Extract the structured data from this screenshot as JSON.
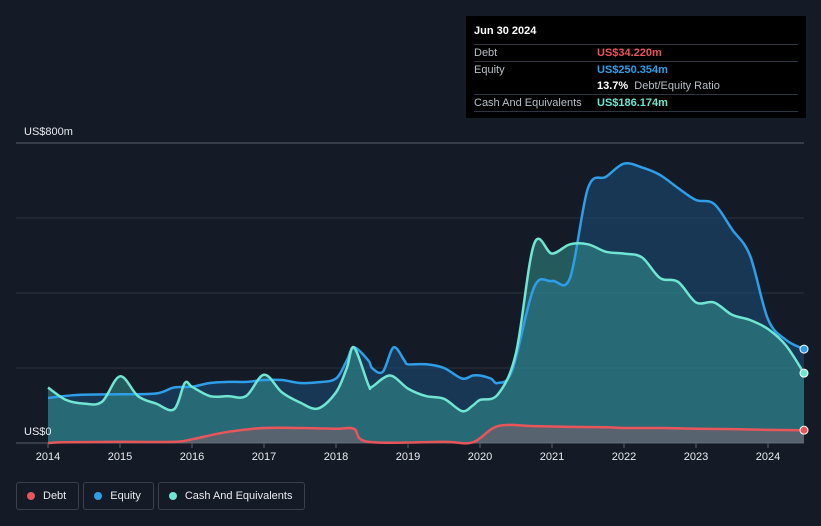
{
  "tooltip": {
    "date": "Jun 30 2024",
    "rows": [
      {
        "label": "Debt",
        "value": "US$34.220m",
        "color": "#e8555a"
      },
      {
        "label": "Equity",
        "value": "US$250.354m",
        "color": "#2e9ee8"
      }
    ],
    "ratio_value": "13.7%",
    "ratio_label": "Debt/Equity Ratio",
    "cash": {
      "label": "Cash And Equivalents",
      "value": "US$186.174m",
      "color": "#70e6d2"
    }
  },
  "legend": [
    {
      "label": "Debt",
      "color": "#e8555a"
    },
    {
      "label": "Equity",
      "color": "#2e9ee8"
    },
    {
      "label": "Cash And Equivalents",
      "color": "#70e6d2"
    }
  ],
  "chart_data": {
    "type": "area",
    "title": "",
    "y_top_label": "US$800m",
    "y_bottom_label": "US$0",
    "ylim": [
      0,
      800
    ],
    "xlim": [
      2014.0,
      2024.5
    ],
    "x_ticks": [
      "2014",
      "2015",
      "2016",
      "2017",
      "2018",
      "2019",
      "2020",
      "2021",
      "2022",
      "2023",
      "2024"
    ],
    "grid": true,
    "legend_position": "bottom-left",
    "series": [
      {
        "name": "Debt",
        "color": "#e8555a",
        "points": [
          [
            2014.0,
            0
          ],
          [
            2014.25,
            2
          ],
          [
            2015.0,
            3
          ],
          [
            2015.75,
            3
          ],
          [
            2016.0,
            10
          ],
          [
            2016.5,
            30
          ],
          [
            2017.0,
            40
          ],
          [
            2017.5,
            40
          ],
          [
            2018.0,
            38
          ],
          [
            2018.25,
            38
          ],
          [
            2018.45,
            3
          ],
          [
            2019.5,
            3
          ],
          [
            2019.9,
            2
          ],
          [
            2020.25,
            45
          ],
          [
            2020.75,
            45
          ],
          [
            2021.25,
            43
          ],
          [
            2021.75,
            42
          ],
          [
            2022.0,
            40
          ],
          [
            2022.5,
            40
          ],
          [
            2023.0,
            38
          ],
          [
            2023.5,
            37
          ],
          [
            2024.0,
            35
          ],
          [
            2024.5,
            34.22
          ]
        ]
      },
      {
        "name": "Equity",
        "color": "#2e9ee8",
        "points": [
          [
            2014.0,
            120
          ],
          [
            2014.4,
            128
          ],
          [
            2015.0,
            130
          ],
          [
            2015.5,
            132
          ],
          [
            2015.75,
            148
          ],
          [
            2016.0,
            150
          ],
          [
            2016.25,
            160
          ],
          [
            2016.5,
            163
          ],
          [
            2016.75,
            163
          ],
          [
            2017.0,
            168
          ],
          [
            2017.25,
            168
          ],
          [
            2017.5,
            160
          ],
          [
            2017.75,
            162
          ],
          [
            2018.0,
            172
          ],
          [
            2018.15,
            220
          ],
          [
            2018.25,
            255
          ],
          [
            2018.45,
            220
          ],
          [
            2018.5,
            200
          ],
          [
            2018.65,
            190
          ],
          [
            2018.8,
            255
          ],
          [
            2018.95,
            220
          ],
          [
            2019.0,
            210
          ],
          [
            2019.25,
            210
          ],
          [
            2019.5,
            200
          ],
          [
            2019.75,
            172
          ],
          [
            2019.9,
            180
          ],
          [
            2020.0,
            180
          ],
          [
            2020.15,
            172
          ],
          [
            2020.25,
            160
          ],
          [
            2020.45,
            195
          ],
          [
            2020.75,
            415
          ],
          [
            2021.0,
            432
          ],
          [
            2021.25,
            440
          ],
          [
            2021.5,
            680
          ],
          [
            2021.75,
            710
          ],
          [
            2022.0,
            745
          ],
          [
            2022.25,
            735
          ],
          [
            2022.5,
            715
          ],
          [
            2022.75,
            680
          ],
          [
            2023.0,
            648
          ],
          [
            2023.25,
            638
          ],
          [
            2023.5,
            570
          ],
          [
            2023.75,
            500
          ],
          [
            2024.0,
            330
          ],
          [
            2024.25,
            275
          ],
          [
            2024.5,
            250.354
          ]
        ]
      },
      {
        "name": "Cash And Equivalents",
        "color": "#70e6d2",
        "points": [
          [
            2014.0,
            148
          ],
          [
            2014.25,
            115
          ],
          [
            2014.5,
            105
          ],
          [
            2014.75,
            110
          ],
          [
            2015.0,
            178
          ],
          [
            2015.25,
            125
          ],
          [
            2015.5,
            105
          ],
          [
            2015.75,
            90
          ],
          [
            2015.9,
            160
          ],
          [
            2016.0,
            150
          ],
          [
            2016.25,
            125
          ],
          [
            2016.5,
            125
          ],
          [
            2016.75,
            125
          ],
          [
            2017.0,
            182
          ],
          [
            2017.25,
            135
          ],
          [
            2017.5,
            108
          ],
          [
            2017.75,
            92
          ],
          [
            2018.0,
            135
          ],
          [
            2018.15,
            200
          ],
          [
            2018.25,
            255
          ],
          [
            2018.45,
            155
          ],
          [
            2018.5,
            150
          ],
          [
            2018.75,
            180
          ],
          [
            2019.0,
            145
          ],
          [
            2019.25,
            125
          ],
          [
            2019.5,
            118
          ],
          [
            2019.75,
            85
          ],
          [
            2019.9,
            100
          ],
          [
            2020.0,
            115
          ],
          [
            2020.25,
            130
          ],
          [
            2020.5,
            240
          ],
          [
            2020.75,
            530
          ],
          [
            2021.0,
            505
          ],
          [
            2021.25,
            530
          ],
          [
            2021.5,
            530
          ],
          [
            2021.75,
            510
          ],
          [
            2022.0,
            505
          ],
          [
            2022.25,
            495
          ],
          [
            2022.5,
            440
          ],
          [
            2022.75,
            430
          ],
          [
            2023.0,
            375
          ],
          [
            2023.25,
            375
          ],
          [
            2023.5,
            342
          ],
          [
            2023.75,
            328
          ],
          [
            2024.0,
            304
          ],
          [
            2024.25,
            260
          ],
          [
            2024.5,
            186.174
          ]
        ]
      }
    ]
  }
}
